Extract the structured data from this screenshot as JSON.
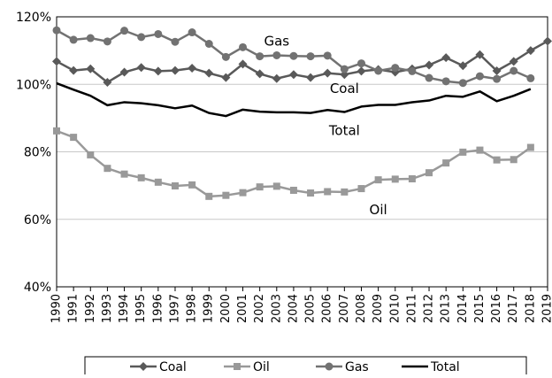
{
  "chart_data": {
    "type": "line",
    "title": "",
    "xlabel": "",
    "ylabel": "",
    "x": [
      "1990",
      "1991",
      "1992",
      "1993",
      "1994",
      "1995",
      "1996",
      "1997",
      "1998",
      "1999",
      "2000",
      "2001",
      "2002",
      "2003",
      "2004",
      "2005",
      "2006",
      "2007",
      "2008",
      "2009",
      "2010",
      "2011",
      "2012",
      "2013",
      "2014",
      "2015",
      "2016",
      "2017",
      "2018",
      "2019"
    ],
    "ylim": [
      40,
      120
    ],
    "yticks": [
      40,
      60,
      80,
      100,
      120
    ],
    "ytick_suffix": "%",
    "grid": "horizontal",
    "legend_position": "bottom",
    "series": [
      {
        "name": "Coal",
        "marker": "diamond",
        "color": "#595959",
        "values": [
          106.8,
          104.1,
          104.6,
          100.6,
          103.6,
          105.0,
          103.9,
          104.1,
          104.8,
          103.3,
          102.0,
          106.0,
          103.1,
          101.7,
          102.9,
          102.0,
          103.3,
          102.9,
          103.9,
          104.4,
          103.6,
          104.6,
          105.7,
          107.9,
          105.5,
          108.8,
          104.0,
          106.8,
          110.0,
          112.8
        ]
      },
      {
        "name": "Oil",
        "marker": "square",
        "color": "#999999",
        "values": [
          86.2,
          84.3,
          79.1,
          75.1,
          73.4,
          72.3,
          71.0,
          69.9,
          70.2,
          66.8,
          67.1,
          67.9,
          69.6,
          69.8,
          68.6,
          67.8,
          68.2,
          68.1,
          69.1,
          71.7,
          71.9,
          72.0,
          73.8,
          76.7,
          79.9,
          80.5,
          77.6,
          77.7,
          81.3,
          null
        ]
      },
      {
        "name": "Gas",
        "marker": "circle",
        "color": "#727272",
        "values": [
          116.0,
          113.2,
          113.7,
          112.7,
          115.9,
          114.0,
          114.9,
          112.6,
          115.4,
          112.0,
          108.1,
          111.0,
          108.3,
          108.6,
          108.4,
          108.3,
          108.5,
          104.5,
          106.2,
          104.0,
          104.9,
          103.9,
          101.9,
          100.9,
          100.4,
          102.4,
          101.6,
          104.0,
          101.8,
          null
        ]
      },
      {
        "name": "Total",
        "marker": "none",
        "color": "#000000",
        "values": [
          100.3,
          98.4,
          96.6,
          93.8,
          94.7,
          94.4,
          93.8,
          92.9,
          93.7,
          91.5,
          90.6,
          92.5,
          91.9,
          91.7,
          91.7,
          91.5,
          92.4,
          91.8,
          93.4,
          93.9,
          93.9,
          94.7,
          95.2,
          96.6,
          96.3,
          97.9,
          95.0,
          96.6,
          98.6,
          null
        ]
      }
    ],
    "annotations": [
      {
        "text": "Gas",
        "x": "2003",
        "y": 111.5
      },
      {
        "text": "Coal",
        "x": "2007",
        "y": 97.5
      },
      {
        "text": "Total",
        "x": "2007",
        "y": 85.0
      },
      {
        "text": "Oil",
        "x": "2009",
        "y": 61.5
      }
    ]
  }
}
